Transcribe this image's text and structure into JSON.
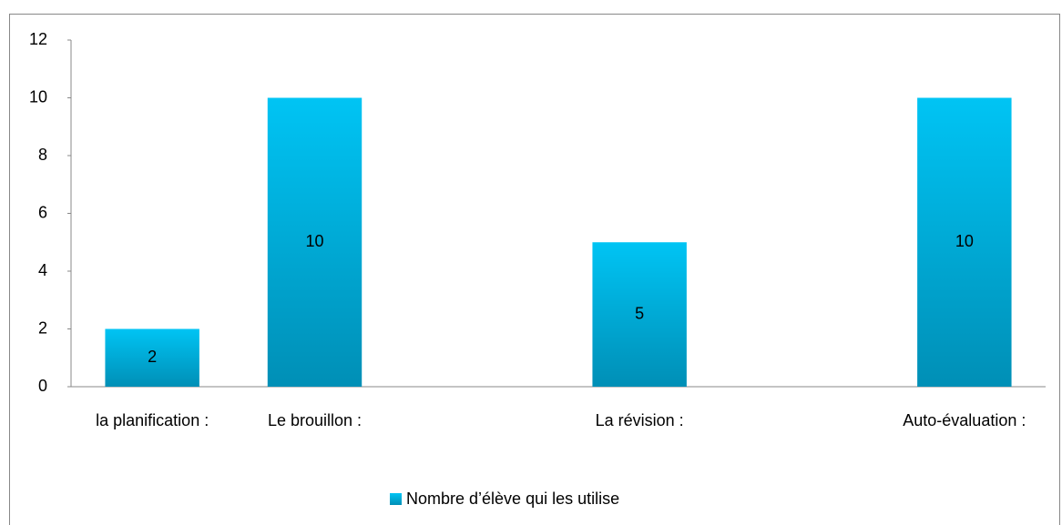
{
  "chart_data": {
    "type": "bar",
    "categories": [
      "la planification :",
      "Le brouillon :",
      null,
      "La révision :",
      null,
      "Auto-évaluation :"
    ],
    "series": [
      {
        "name": "Nombre d’élève qui les utilise",
        "color": "#00b0e0",
        "values": [
          2,
          10,
          null,
          5,
          null,
          10
        ]
      }
    ],
    "ylim": [
      0,
      12
    ],
    "yticks": [
      0,
      2,
      4,
      6,
      8,
      10,
      12
    ],
    "grid": false,
    "legend": "bottom"
  }
}
